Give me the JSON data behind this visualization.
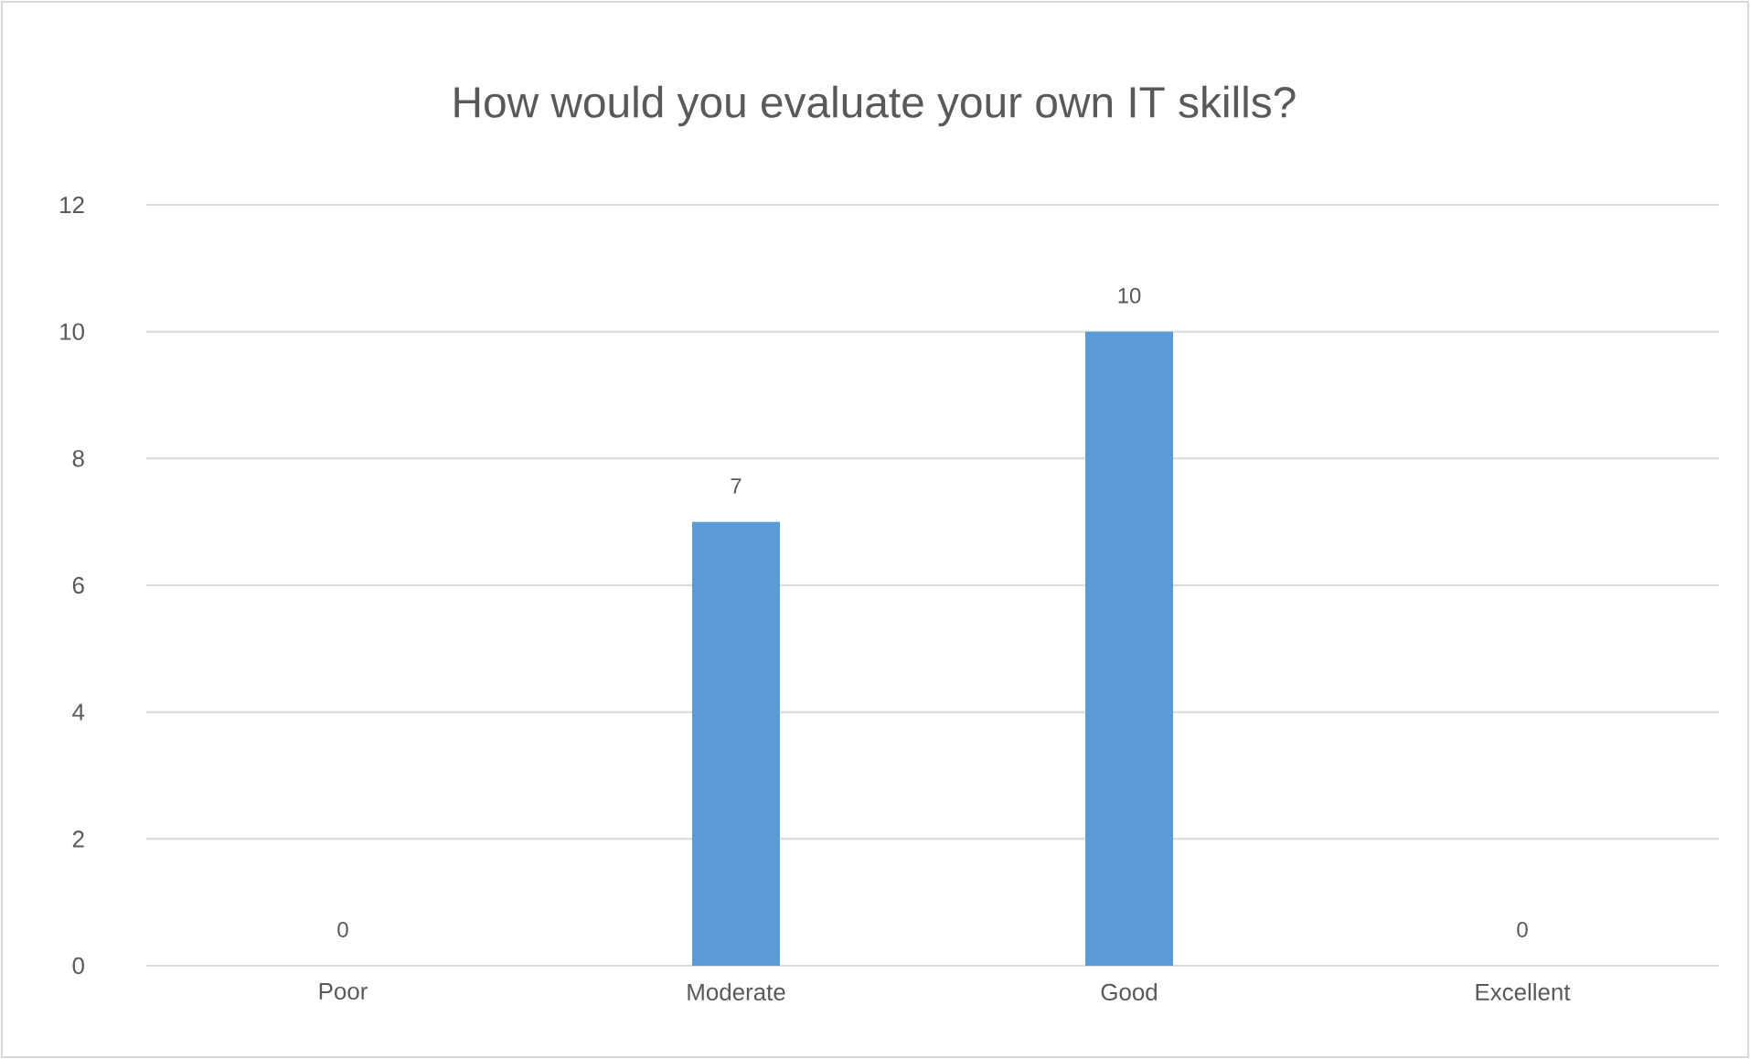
{
  "chart_data": {
    "type": "bar",
    "title": "How would you evaluate your own IT skills?",
    "categories": [
      "Poor",
      "Moderate",
      "Good",
      "Excellent"
    ],
    "values": [
      0,
      7,
      10,
      0
    ],
    "color": "#5b9bd5",
    "ylim": [
      0,
      12
    ],
    "yticks": [
      0,
      2,
      4,
      6,
      8,
      10,
      12
    ],
    "grid": "y",
    "data_labels": true
  }
}
